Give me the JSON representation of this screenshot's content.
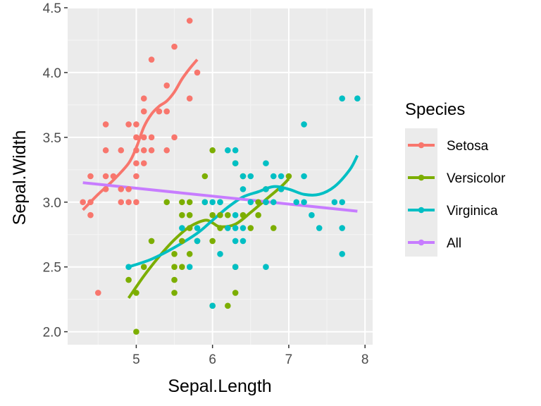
{
  "chart_data": {
    "type": "scatter",
    "title": "",
    "xlabel": "Sepal.Length",
    "ylabel": "Sepal.Width",
    "xlim": [
      4.1,
      8.1
    ],
    "ylim": [
      1.9,
      4.5
    ],
    "x_ticks": [
      5,
      6,
      7,
      8
    ],
    "x_tick_labels": [
      "5",
      "6",
      "7",
      "8"
    ],
    "y_ticks": [
      2.0,
      2.5,
      3.0,
      3.5,
      4.0,
      4.5
    ],
    "y_tick_labels": [
      "2.0",
      "2.5",
      "3.0",
      "3.5",
      "4.0",
      "4.5"
    ],
    "legend_title": "Species",
    "legend_position": "right",
    "series": [
      {
        "name": "Setosa",
        "color": "#F8766D",
        "points": [
          [
            4.3,
            3.0
          ],
          [
            4.4,
            3.2
          ],
          [
            4.4,
            3.0
          ],
          [
            4.4,
            2.9
          ],
          [
            4.5,
            2.3
          ],
          [
            4.6,
            3.6
          ],
          [
            4.6,
            3.4
          ],
          [
            4.6,
            3.2
          ],
          [
            4.6,
            3.1
          ],
          [
            4.7,
            3.2
          ],
          [
            4.8,
            3.4
          ],
          [
            4.8,
            3.1
          ],
          [
            4.8,
            3.0
          ],
          [
            4.9,
            3.6
          ],
          [
            4.9,
            3.1
          ],
          [
            4.9,
            3.0
          ],
          [
            5.0,
            3.6
          ],
          [
            5.0,
            3.5
          ],
          [
            5.0,
            3.4
          ],
          [
            5.0,
            3.3
          ],
          [
            5.0,
            3.2
          ],
          [
            5.0,
            3.0
          ],
          [
            5.1,
            3.8
          ],
          [
            5.1,
            3.7
          ],
          [
            5.1,
            3.5
          ],
          [
            5.1,
            3.4
          ],
          [
            5.1,
            3.3
          ],
          [
            5.2,
            4.1
          ],
          [
            5.2,
            3.5
          ],
          [
            5.2,
            3.4
          ],
          [
            5.3,
            3.7
          ],
          [
            5.4,
            3.9
          ],
          [
            5.4,
            3.7
          ],
          [
            5.4,
            3.4
          ],
          [
            5.5,
            4.2
          ],
          [
            5.5,
            3.5
          ],
          [
            5.7,
            4.4
          ],
          [
            5.7,
            3.8
          ],
          [
            5.8,
            4.0
          ]
        ],
        "smooth": [
          [
            4.3,
            2.94
          ],
          [
            4.5,
            3.06
          ],
          [
            4.7,
            3.17
          ],
          [
            4.9,
            3.3
          ],
          [
            5.0,
            3.42
          ],
          [
            5.1,
            3.58
          ],
          [
            5.2,
            3.68
          ],
          [
            5.3,
            3.74
          ],
          [
            5.4,
            3.78
          ],
          [
            5.5,
            3.85
          ],
          [
            5.6,
            3.95
          ],
          [
            5.7,
            4.03
          ],
          [
            5.8,
            4.1
          ]
        ]
      },
      {
        "name": "Versicolor",
        "color": "#7CAE00",
        "points": [
          [
            4.9,
            2.4
          ],
          [
            5.0,
            2.3
          ],
          [
            5.0,
            2.0
          ],
          [
            5.1,
            2.5
          ],
          [
            5.2,
            2.7
          ],
          [
            5.4,
            3.0
          ],
          [
            5.5,
            2.6
          ],
          [
            5.5,
            2.5
          ],
          [
            5.5,
            2.4
          ],
          [
            5.5,
            2.3
          ],
          [
            5.6,
            3.0
          ],
          [
            5.6,
            2.9
          ],
          [
            5.6,
            2.7
          ],
          [
            5.6,
            2.5
          ],
          [
            5.7,
            3.0
          ],
          [
            5.7,
            2.9
          ],
          [
            5.7,
            2.8
          ],
          [
            5.7,
            2.6
          ],
          [
            5.8,
            2.7
          ],
          [
            5.9,
            3.2
          ],
          [
            5.9,
            3.0
          ],
          [
            6.0,
            3.4
          ],
          [
            6.0,
            2.9
          ],
          [
            6.0,
            2.7
          ],
          [
            6.0,
            2.2
          ],
          [
            6.1,
            3.0
          ],
          [
            6.1,
            2.9
          ],
          [
            6.1,
            2.8
          ],
          [
            6.2,
            2.9
          ],
          [
            6.2,
            2.2
          ],
          [
            6.3,
            3.3
          ],
          [
            6.3,
            2.5
          ],
          [
            6.3,
            2.3
          ],
          [
            6.4,
            3.2
          ],
          [
            6.4,
            2.9
          ],
          [
            6.5,
            2.8
          ],
          [
            6.6,
            3.0
          ],
          [
            6.6,
            2.9
          ],
          [
            6.7,
            3.1
          ],
          [
            6.7,
            3.0
          ],
          [
            6.8,
            2.8
          ],
          [
            6.9,
            3.1
          ],
          [
            7.0,
            3.2
          ]
        ],
        "smooth": [
          [
            4.9,
            2.26
          ],
          [
            5.1,
            2.43
          ],
          [
            5.3,
            2.58
          ],
          [
            5.5,
            2.71
          ],
          [
            5.7,
            2.81
          ],
          [
            5.9,
            2.86
          ],
          [
            6.0,
            2.84
          ],
          [
            6.1,
            2.81
          ],
          [
            6.3,
            2.83
          ],
          [
            6.5,
            2.92
          ],
          [
            6.7,
            3.02
          ],
          [
            6.9,
            3.12
          ],
          [
            7.0,
            3.18
          ]
        ]
      },
      {
        "name": "Virginica",
        "color": "#00BFC4",
        "points": [
          [
            4.9,
            2.5
          ],
          [
            5.6,
            2.8
          ],
          [
            5.7,
            2.5
          ],
          [
            5.8,
            2.8
          ],
          [
            5.8,
            2.7
          ],
          [
            5.9,
            3.0
          ],
          [
            6.0,
            3.0
          ],
          [
            6.0,
            2.2
          ],
          [
            6.1,
            3.0
          ],
          [
            6.1,
            2.6
          ],
          [
            6.2,
            3.4
          ],
          [
            6.2,
            2.8
          ],
          [
            6.3,
            3.4
          ],
          [
            6.3,
            3.3
          ],
          [
            6.3,
            2.9
          ],
          [
            6.3,
            2.8
          ],
          [
            6.3,
            2.7
          ],
          [
            6.3,
            2.5
          ],
          [
            6.4,
            3.2
          ],
          [
            6.4,
            3.1
          ],
          [
            6.4,
            2.8
          ],
          [
            6.4,
            2.7
          ],
          [
            6.5,
            3.2
          ],
          [
            6.5,
            3.0
          ],
          [
            6.7,
            3.3
          ],
          [
            6.7,
            3.1
          ],
          [
            6.7,
            3.0
          ],
          [
            6.7,
            2.5
          ],
          [
            6.8,
            3.2
          ],
          [
            6.8,
            3.0
          ],
          [
            6.9,
            3.2
          ],
          [
            6.9,
            3.1
          ],
          [
            7.1,
            3.0
          ],
          [
            7.2,
            3.6
          ],
          [
            7.2,
            3.2
          ],
          [
            7.2,
            3.0
          ],
          [
            7.3,
            2.9
          ],
          [
            7.4,
            2.8
          ],
          [
            7.6,
            3.0
          ],
          [
            7.7,
            3.8
          ],
          [
            7.7,
            3.0
          ],
          [
            7.7,
            2.8
          ],
          [
            7.7,
            2.6
          ],
          [
            7.9,
            3.8
          ]
        ],
        "smooth": [
          [
            4.9,
            2.5
          ],
          [
            5.2,
            2.56
          ],
          [
            5.5,
            2.65
          ],
          [
            5.8,
            2.76
          ],
          [
            6.0,
            2.86
          ],
          [
            6.2,
            2.96
          ],
          [
            6.4,
            3.04
          ],
          [
            6.6,
            3.08
          ],
          [
            6.8,
            3.12
          ],
          [
            7.0,
            3.1
          ],
          [
            7.2,
            3.06
          ],
          [
            7.4,
            3.06
          ],
          [
            7.6,
            3.12
          ],
          [
            7.8,
            3.25
          ],
          [
            7.9,
            3.36
          ]
        ]
      },
      {
        "name": "All",
        "color": "#C77CFF",
        "points": [],
        "smooth": [
          [
            4.3,
            3.15
          ],
          [
            7.9,
            2.93
          ]
        ]
      }
    ]
  }
}
